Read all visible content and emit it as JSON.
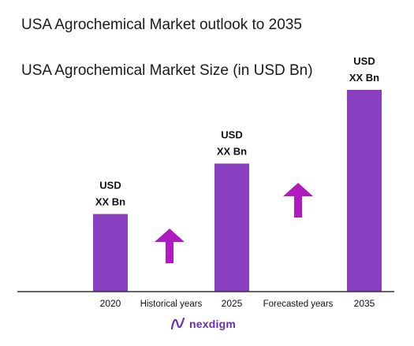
{
  "chart_data": {
    "type": "bar",
    "title": "USA Agrochemical Market outlook to 2035",
    "subtitle": "USA Agrochemical Market Size (in USD Bn)",
    "categories": [
      "2020",
      "2025",
      "2035"
    ],
    "values": [
      1,
      1.65,
      2.6
    ],
    "data_labels": [
      [
        "USD",
        "XX Bn"
      ],
      [
        "USD",
        "XX Bn"
      ],
      [
        "USD",
        "XX Bn"
      ]
    ],
    "ylim": [
      0,
      2.6
    ],
    "bar_color": "#8a3fc0",
    "arrow_color": "#b01bbf",
    "axis_color": "#333333",
    "grid": false,
    "annotations": [
      {
        "label": "Historical years",
        "between": [
          0,
          1
        ]
      },
      {
        "label": "Forecasted years",
        "between": [
          1,
          2
        ]
      }
    ]
  },
  "branding": {
    "logo_text": "nexdigm",
    "logo_icon": "nexdigm-swirl-icon"
  }
}
